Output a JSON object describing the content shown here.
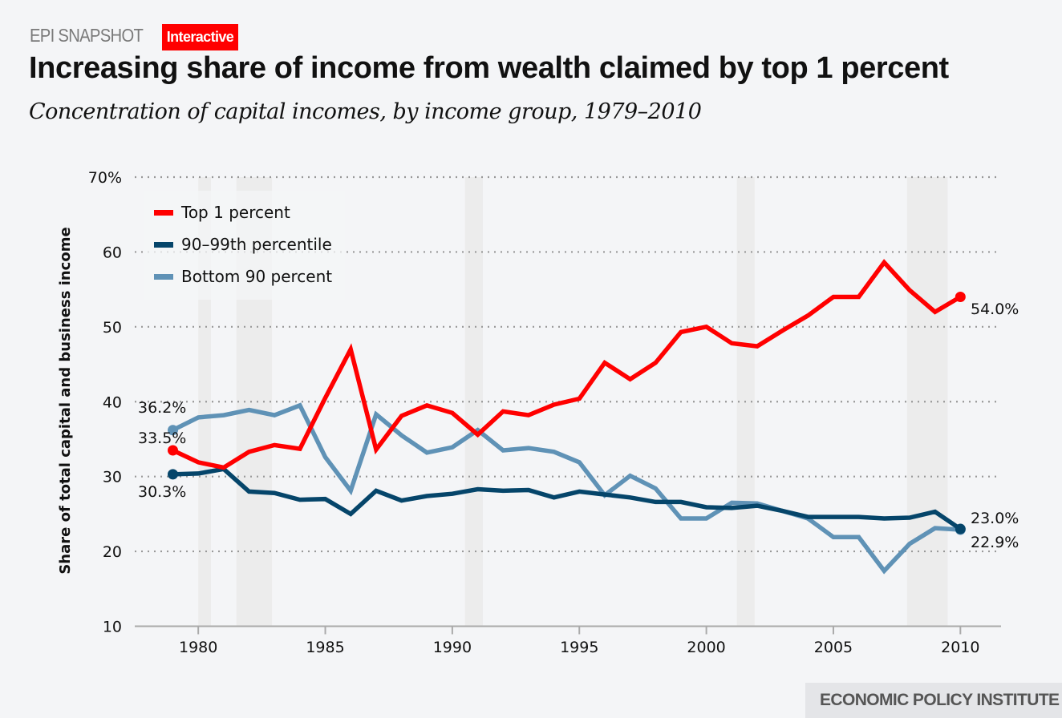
{
  "header": {
    "kicker": "EPI SNAPSHOT",
    "badge": "Interactive",
    "title": "Increasing share of income from wealth claimed by top 1 percent",
    "subtitle": "Concentration of capital incomes, by income group, 1979–2010"
  },
  "footer": {
    "source": "ECONOMIC POLICY INSTITUTE"
  },
  "colors": {
    "top1": "#ff0000",
    "mid": "#05456a",
    "bottom90": "#5f92b6",
    "recession": "#ececec",
    "grid": "#999999",
    "badge": "#ff0000"
  },
  "chart_data": {
    "type": "line",
    "title": "Increasing share of income from wealth claimed by top 1 percent",
    "subtitle": "Concentration of capital incomes, by income group, 1979–2010",
    "xlabel": "",
    "ylabel": "Share of total capital and business income",
    "xlim": [
      1977.5,
      2011.6
    ],
    "ylim": [
      10,
      70
    ],
    "grid": true,
    "legend_position": "top-left",
    "y_ticks": [
      {
        "value": 70,
        "label": "70%"
      },
      {
        "value": 60,
        "label": "60"
      },
      {
        "value": 50,
        "label": "50"
      },
      {
        "value": 40,
        "label": "40"
      },
      {
        "value": 30,
        "label": "30"
      },
      {
        "value": 20,
        "label": "20"
      },
      {
        "value": 10,
        "label": "10"
      }
    ],
    "x_ticks": [
      {
        "value": 1980,
        "label": "1980"
      },
      {
        "value": 1985,
        "label": "1985"
      },
      {
        "value": 1990,
        "label": "1990"
      },
      {
        "value": 1995,
        "label": "1995"
      },
      {
        "value": 2000,
        "label": "2000"
      },
      {
        "value": 2005,
        "label": "2005"
      },
      {
        "value": 2010,
        "label": "2010"
      }
    ],
    "recessions": [
      [
        1980.0,
        1980.5
      ],
      [
        1981.5,
        1982.9
      ],
      [
        1990.5,
        1991.2
      ],
      [
        2001.2,
        2001.9
      ],
      [
        2007.9,
        2009.5
      ]
    ],
    "x": [
      1979,
      1980,
      1981,
      1982,
      1983,
      1984,
      1985,
      1986,
      1987,
      1988,
      1989,
      1990,
      1991,
      1992,
      1993,
      1994,
      1995,
      1996,
      1997,
      1998,
      1999,
      2000,
      2001,
      2002,
      2003,
      2004,
      2005,
      2006,
      2007,
      2008,
      2009,
      2010
    ],
    "series": [
      {
        "key": "top1",
        "name": "Top 1 percent",
        "values": [
          33.5,
          31.9,
          31.2,
          33.3,
          34.2,
          33.7,
          40.5,
          47.0,
          33.6,
          38.1,
          39.5,
          38.5,
          35.6,
          38.7,
          38.2,
          39.6,
          40.4,
          45.2,
          43.0,
          45.2,
          49.3,
          50.0,
          47.8,
          47.4,
          49.5,
          51.5,
          54.0,
          54.0,
          58.6,
          54.9,
          52.0,
          54.0
        ],
        "start_label": "33.5%",
        "end_label": "54.0%"
      },
      {
        "key": "mid",
        "name": "90–99th percentile",
        "values": [
          30.3,
          30.4,
          31.0,
          28.0,
          27.8,
          26.9,
          27.0,
          25.0,
          28.1,
          26.8,
          27.4,
          27.7,
          28.3,
          28.1,
          28.2,
          27.2,
          28.0,
          27.6,
          27.2,
          26.6,
          26.6,
          25.9,
          25.8,
          26.1,
          25.4,
          24.6,
          24.6,
          24.6,
          24.4,
          24.5,
          25.3,
          23.0
        ],
        "start_label": "30.3%",
        "end_label": "23.0%"
      },
      {
        "key": "bottom90",
        "name": "Bottom 90 percent",
        "values": [
          36.2,
          37.9,
          38.2,
          38.9,
          38.2,
          39.5,
          32.6,
          28.1,
          38.3,
          35.5,
          33.2,
          33.9,
          36.2,
          33.5,
          33.8,
          33.3,
          31.9,
          27.5,
          30.1,
          28.4,
          24.4,
          24.4,
          26.5,
          26.4,
          25.4,
          24.4,
          21.9,
          21.9,
          17.4,
          21.0,
          23.1,
          22.9
        ],
        "start_label": "36.2%",
        "end_label": "22.9%"
      }
    ]
  }
}
